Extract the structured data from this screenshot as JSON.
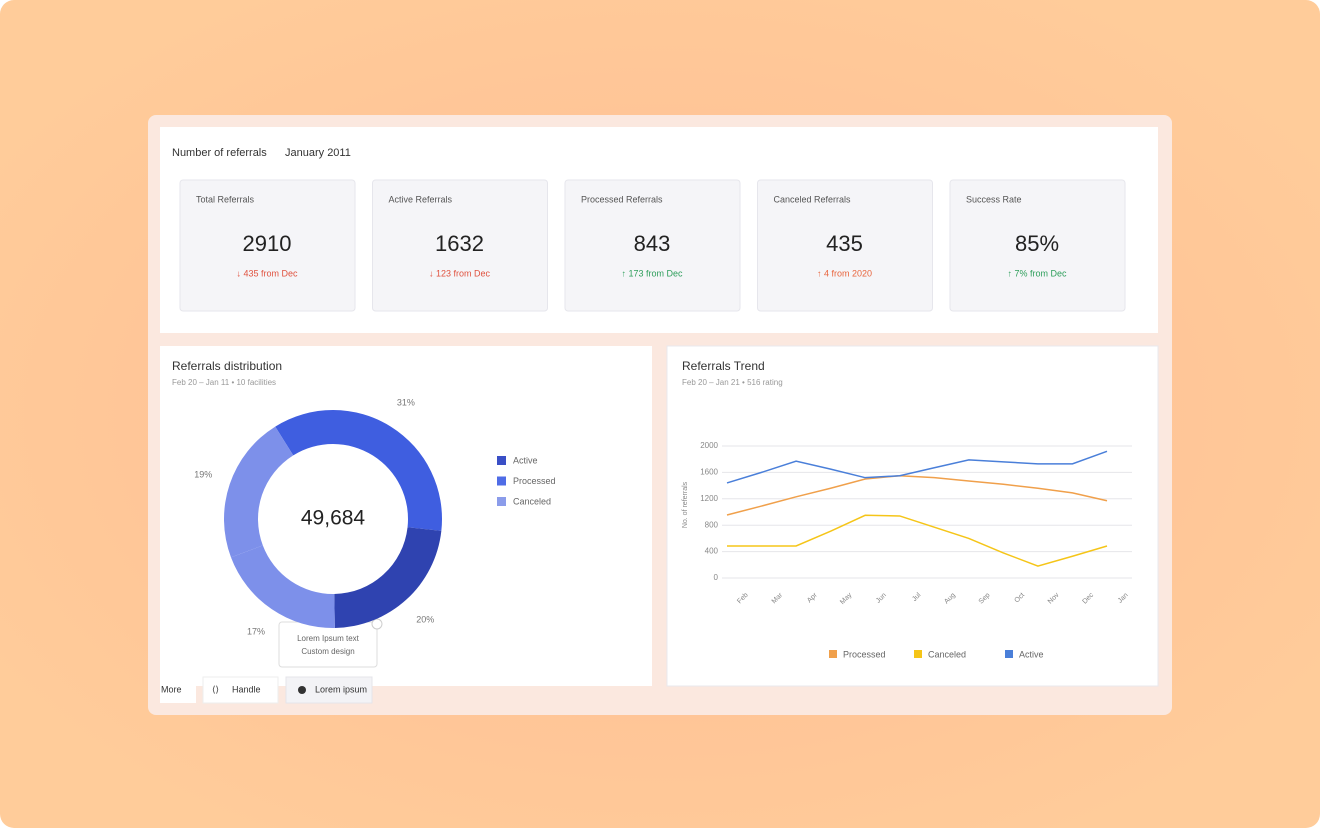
{
  "header": {
    "title": "Number of referrals",
    "period": "January 2011"
  },
  "kpis": [
    {
      "label": "Total Referrals",
      "value": 2910,
      "delta": "↓ 435 from Dec",
      "color": "#e0523f"
    },
    {
      "label": "Active Referrals",
      "value": 1632,
      "delta": "↓ 123 from Dec",
      "color": "#e0523f"
    },
    {
      "label": "Processed Referrals",
      "value": 843,
      "delta": "↑ 173 from Dec",
      "color": "#2e9e5b"
    },
    {
      "label": "Canceled Referrals",
      "value": 435,
      "delta": "↑ 4 from 2020",
      "color": "#e8643c"
    },
    {
      "label": "Success Rate",
      "value": "85%",
      "delta": "↑ 7% from Dec",
      "color": "#2e9e5b"
    }
  ],
  "chart_data": [
    {
      "type": "pie",
      "title": "Referrals distribution",
      "subtitle": "Feb 20 – Jan 11  •  10 facilities",
      "center_label": "49,684",
      "values": [
        31,
        20,
        17,
        19
      ],
      "value_labels": [
        "31%",
        "20%",
        "17%",
        "19%"
      ],
      "colors": [
        "#3f5ee0",
        "#2f43b0",
        "#7d90ea",
        "#7d90ea"
      ],
      "legend": [
        {
          "name": "Active",
          "color": "#3a4fc6"
        },
        {
          "name": "Processed",
          "color": "#4f6ce6"
        },
        {
          "name": "Canceled",
          "color": "#8b9cea"
        }
      ],
      "tooltip": [
        "Lorem Ipsum text",
        "Custom design"
      ]
    },
    {
      "type": "line",
      "title": "Referrals Trend",
      "subtitle": "Feb 20 – Jan 21  •  516 rating",
      "y_label": "No. of referrals",
      "categories": [
        "Feb",
        "Mar",
        "Apr",
        "May",
        "Jun",
        "Jul",
        "Aug",
        "Sep",
        "Oct",
        "Nov",
        "Dec",
        "Jan"
      ],
      "ylim": [
        0,
        2000
      ],
      "yticks": [
        0,
        400,
        800,
        1200,
        1600,
        2000
      ],
      "grid": true,
      "legend_position": "bottom",
      "series": [
        {
          "name": "Processed",
          "color": "#f0a04b",
          "values": [
            955,
            1090,
            1230,
            1360,
            1500,
            1550,
            1520,
            1470,
            1420,
            1360,
            1290,
            1170
          ]
        },
        {
          "name": "Canceled",
          "color": "#f5c518",
          "values": [
            485,
            485,
            485,
            710,
            950,
            940,
            770,
            600,
            380,
            180,
            330,
            485
          ]
        },
        {
          "name": "Active",
          "color": "#4a7fd9",
          "values": [
            1440,
            1600,
            1770,
            1650,
            1520,
            1550,
            1670,
            1790,
            1760,
            1730,
            1730,
            1920
          ]
        }
      ]
    }
  ],
  "tabs": [
    "More",
    "Handle",
    "Lorem ipsum"
  ]
}
